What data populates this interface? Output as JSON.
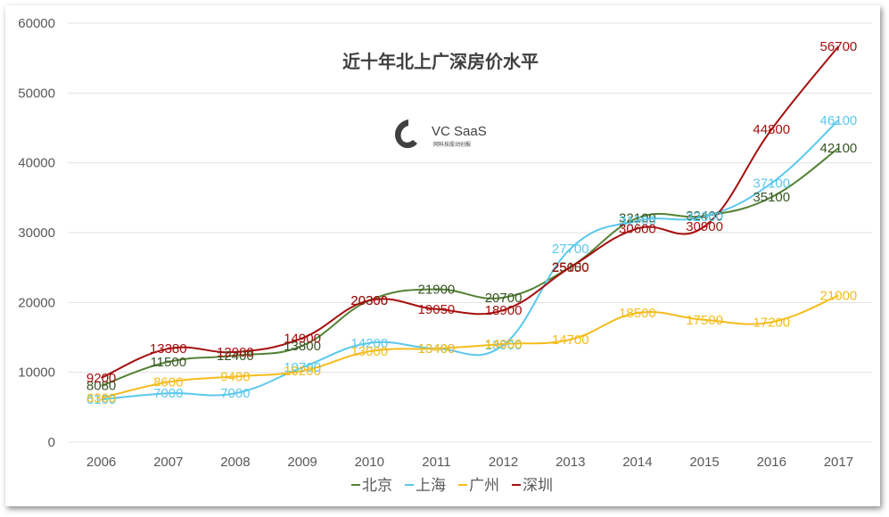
{
  "chart_data": {
    "type": "line",
    "title": "近十年北上广深房价水平",
    "categories": [
      "2006",
      "2007",
      "2008",
      "2009",
      "2010",
      "2011",
      "2012",
      "2013",
      "2014",
      "2015",
      "2016",
      "2017"
    ],
    "ylim": [
      0,
      60000
    ],
    "yticks": [
      "0",
      "10000",
      "20000",
      "30000",
      "40000",
      "50000",
      "60000"
    ],
    "grid": true,
    "legend_position": "bottom",
    "series": [
      {
        "name": "北京",
        "color": "#548235",
        "label_color": "#375623",
        "values": [
          8080,
          11500,
          12400,
          13800,
          20300,
          21900,
          20700,
          25100,
          32100,
          32400,
          35100,
          42100
        ]
      },
      {
        "name": "上海",
        "color": "#5BC8EC",
        "label_color": "#5BC8EC",
        "values": [
          6100,
          7000,
          7000,
          10700,
          14200,
          13400,
          13900,
          27700,
          31700,
          32300,
          37100,
          46100
        ]
      },
      {
        "name": "广州",
        "color": "#F4BC1C",
        "label_color": "#F4BC1C",
        "values": [
          6300,
          8600,
          9400,
          10200,
          13000,
          13400,
          14050,
          14700,
          18500,
          17500,
          17200,
          21000
        ]
      },
      {
        "name": "深圳",
        "color": "#A50F0F",
        "label_color": "#A50F0F",
        "values": [
          9200,
          13380,
          12900,
          14900,
          20300,
          19050,
          18900,
          25050,
          30600,
          30900,
          44800,
          56700
        ]
      }
    ]
  },
  "watermark": {
    "brand": "VC  SaaS",
    "tagline": "网科技股动创报"
  }
}
